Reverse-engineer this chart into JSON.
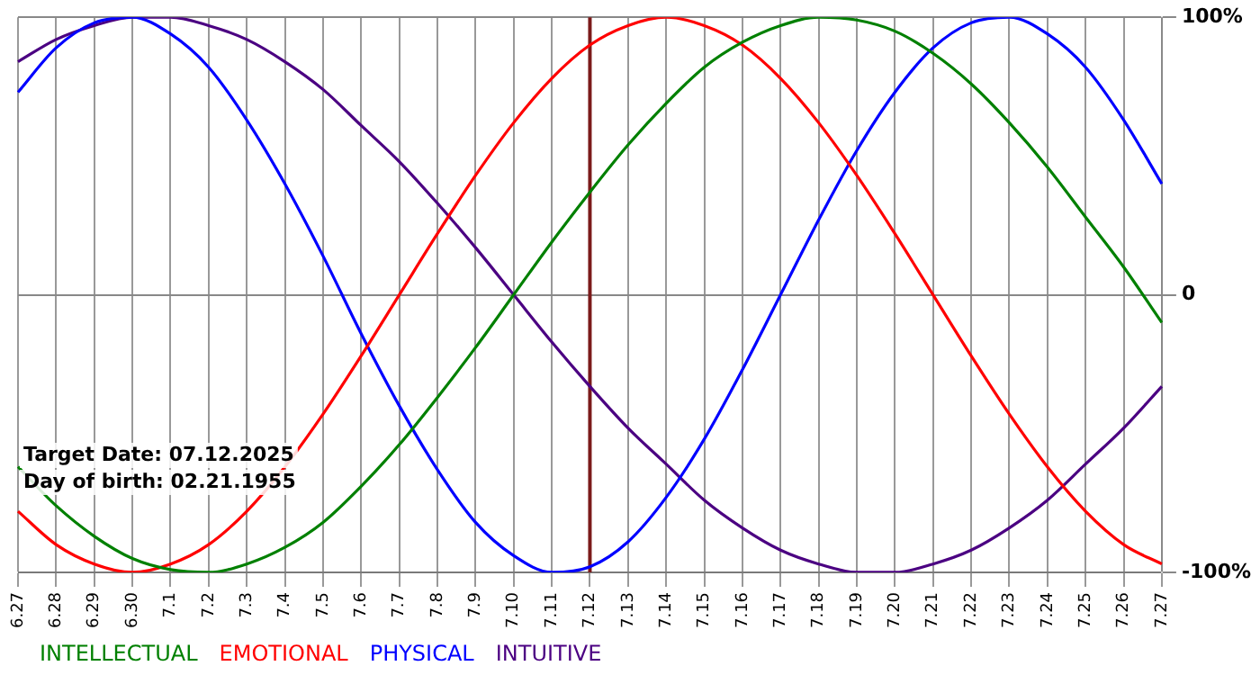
{
  "chart_data": {
    "type": "line",
    "categories": [
      "6.27",
      "6.28",
      "6.29",
      "6.30",
      "7.1",
      "7.2",
      "7.3",
      "7.4",
      "7.5",
      "7.6",
      "7.7",
      "7.8",
      "7.9",
      "7.10",
      "7.11",
      "7.12",
      "7.13",
      "7.14",
      "7.15",
      "7.16",
      "7.17",
      "7.18",
      "7.19",
      "7.20",
      "7.21",
      "7.22",
      "7.23",
      "7.24",
      "7.25",
      "7.26",
      "7.27"
    ],
    "series": [
      {
        "name": "INTELLECTUAL",
        "color": "#008000",
        "values": [
          -62,
          -76,
          -87,
          -95,
          -99,
          -100,
          -97,
          -91,
          -82,
          -69,
          -54,
          -37,
          -19,
          0,
          19,
          37,
          54,
          69,
          82,
          91,
          97,
          100,
          99,
          95,
          87,
          76,
          62,
          46,
          28,
          10,
          -10
        ]
      },
      {
        "name": "EMOTIONAL",
        "color": "#ff0000",
        "values": [
          -78,
          -90,
          -97,
          -100,
          -97,
          -90,
          -78,
          -62,
          -43,
          -22,
          0,
          22,
          43,
          62,
          78,
          90,
          97,
          100,
          97,
          90,
          78,
          62,
          43,
          22,
          0,
          -22,
          -43,
          -62,
          -78,
          -90,
          -97
        ]
      },
      {
        "name": "PHYSICAL",
        "color": "#0000ff",
        "values": [
          73,
          89,
          98,
          100,
          94,
          82,
          63,
          40,
          14,
          -14,
          -40,
          -63,
          -82,
          -94,
          -100,
          -98,
          -89,
          -73,
          -52,
          -27,
          0,
          27,
          52,
          73,
          89,
          98,
          100,
          94,
          82,
          63,
          40
        ]
      },
      {
        "name": "INTUITIVE",
        "color": "#4b0082",
        "values": [
          84,
          92,
          97,
          100,
          100,
          97,
          92,
          84,
          74,
          61,
          48,
          33,
          17,
          0,
          -17,
          -33,
          -48,
          -61,
          -74,
          -84,
          -92,
          -97,
          -100,
          -100,
          -97,
          -92,
          -84,
          -74,
          -61,
          -48,
          -33
        ]
      }
    ],
    "ylim": [
      -100,
      100
    ],
    "yticks": [
      {
        "value": 100,
        "label": "100%"
      },
      0,
      {
        "value": -100,
        "label": "-100%"
      }
    ],
    "grid": true,
    "legend": "bottom left",
    "marker": "none",
    "ref_lines": [
      {
        "axis": "x",
        "value": "7.12",
        "color": "#7b1a1a"
      }
    ],
    "annotations": [
      "Target Date: 07.12.2025",
      "Day of birth: 02.21.1955"
    ]
  }
}
